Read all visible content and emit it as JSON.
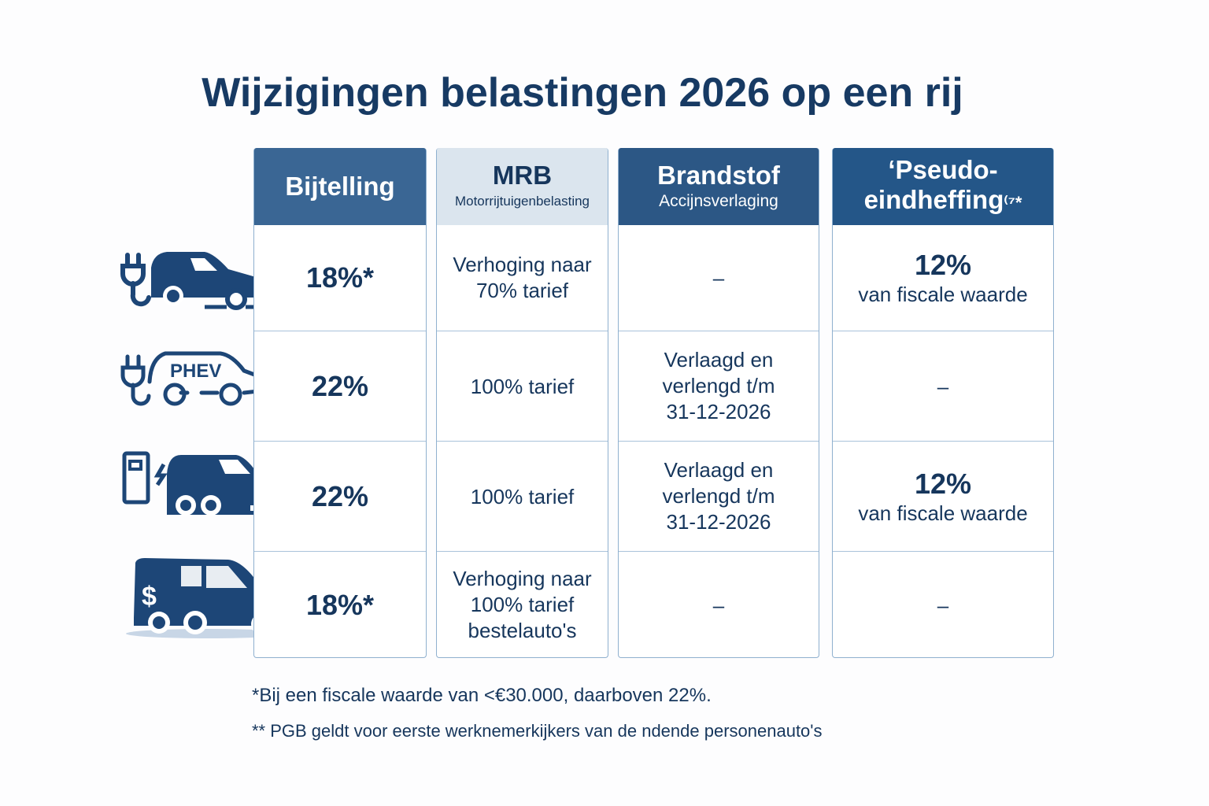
{
  "title": "Wijzigingen belastingen 2026 op een rij",
  "colors": {
    "header_dark": "#2c5785",
    "header_mid": "#3a6694",
    "header_light": "#dbe5ee",
    "text": "#16365c",
    "icon": "#1d4677"
  },
  "columns": [
    {
      "title": "Bijtelling",
      "subtitle": ""
    },
    {
      "title": "MRB",
      "subtitle": "Motorrijtuigenbelasting"
    },
    {
      "title": "Brandstof",
      "subtitle": "Accijnsverlaging"
    },
    {
      "title": "‘Pseudo-eindheffing",
      "suffix": "⁽⁷*"
    }
  ],
  "rows": [
    {
      "icon": "electric-car-plug-icon",
      "bijtelling": "18%*",
      "mrb": "Verhoging naar 70% tarief",
      "brandstof": "–",
      "pseudo_value": "12%",
      "pseudo_note": "van fiscale waarde"
    },
    {
      "icon": "phev-car-icon",
      "icon_label": "PHEV",
      "bijtelling": "22%",
      "mrb": "100% tarief",
      "brandstof": "Verlaagd en verlengd t/m 31-12-2026",
      "pseudo_value": "–",
      "pseudo_note": ""
    },
    {
      "icon": "charging-station-car-icon",
      "bijtelling": "22%",
      "mrb": "100% tarief",
      "brandstof": "Verlaagd en verlengd t/m 31-12-2026",
      "pseudo_value": "12%",
      "pseudo_note": "van fiscale waarde"
    },
    {
      "icon": "delivery-van-icon",
      "bijtelling": "18%*",
      "mrb": "Verhoging naar 100% tarief bestelauto's",
      "brandstof": "–",
      "pseudo_value": "–",
      "pseudo_note": ""
    }
  ],
  "footnotes": [
    "*Bij een fiscale waarde van <€30.000, daarboven 22%.",
    "** PGB geldt voor eerste werknemerkijkers van de ndende personenauto's"
  ]
}
